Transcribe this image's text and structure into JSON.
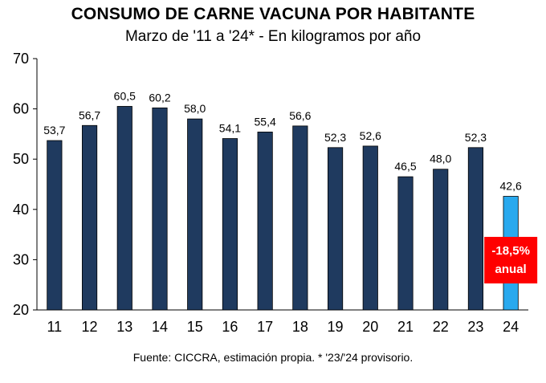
{
  "chart_data": {
    "type": "bar",
    "title": "CONSUMO DE CARNE VACUNA POR HABITANTE",
    "subtitle": "Marzo de '11 a '24* - En kilogramos por año",
    "categories": [
      "11",
      "12",
      "13",
      "14",
      "15",
      "16",
      "17",
      "18",
      "19",
      "20",
      "21",
      "22",
      "23",
      "24"
    ],
    "values": [
      53.7,
      56.7,
      60.5,
      60.2,
      58.0,
      54.1,
      55.4,
      56.6,
      52.3,
      52.6,
      46.5,
      48.0,
      52.3,
      42.6
    ],
    "value_labels": [
      "53,7",
      "56,7",
      "60,5",
      "60,2",
      "58,0",
      "54,1",
      "55,4",
      "56,6",
      "52,3",
      "52,6",
      "46,5",
      "48,0",
      "52,3",
      "42,6"
    ],
    "ylim": [
      20,
      70
    ],
    "yticks": [
      20,
      30,
      40,
      50,
      60,
      70
    ],
    "grid": false,
    "xlabel": "",
    "ylabel": "",
    "bar_color": "#1f3a5f",
    "highlight_index": 13,
    "highlight_color": "#29a9ee",
    "annotation": {
      "line1": "-18,5%",
      "line2": "anual",
      "color": "#ff0000"
    },
    "source": "Fuente: CICCRA, estimación propia. * '23/'24 provisorio."
  }
}
